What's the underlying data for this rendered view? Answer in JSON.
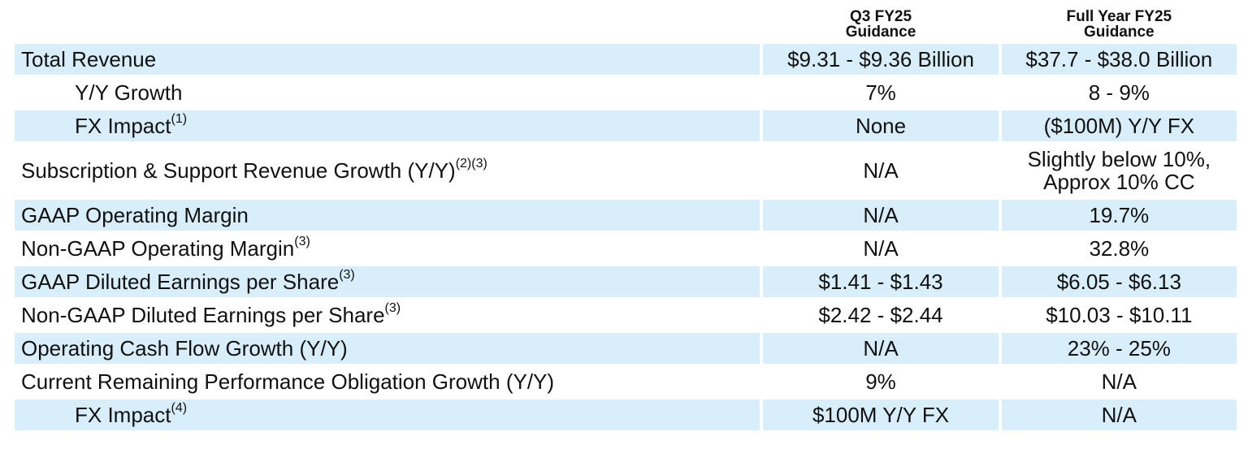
{
  "table": {
    "header": [
      "Q3 FY25\nGuidance",
      "Full Year FY25\nGuidance"
    ],
    "rows": [
      {
        "label": "Total Revenue",
        "values": [
          "$9.31 - $9.36 Billion",
          "$37.7 - $38.0 Billion"
        ]
      },
      {
        "label": "Y/Y Growth",
        "indent": true,
        "values": [
          "7%",
          "8 - 9%"
        ]
      },
      {
        "label": "FX Impact",
        "sup": "(1)",
        "indent": true,
        "values": [
          "None",
          "($100M) Y/Y FX"
        ]
      },
      {
        "label": "Subscription & Support Revenue Growth (Y/Y)",
        "sup": "(2)(3)",
        "values": [
          "N/A",
          "Slightly below 10%,\nApprox 10% CC"
        ]
      },
      {
        "label": "GAAP Operating Margin",
        "values": [
          "N/A",
          "19.7%"
        ]
      },
      {
        "label": "Non-GAAP Operating Margin",
        "sup": "(3)",
        "values": [
          "N/A",
          "32.8%"
        ]
      },
      {
        "label": "GAAP Diluted Earnings per Share",
        "sup": "(3)",
        "values": [
          "$1.41 - $1.43",
          "$6.05 - $6.13"
        ]
      },
      {
        "label": "Non-GAAP Diluted Earnings per Share",
        "sup": "(3)",
        "values": [
          "$2.42 - $2.44",
          "$10.03 - $10.11"
        ]
      },
      {
        "label": "Operating Cash Flow Growth (Y/Y)",
        "values": [
          "N/A",
          "23% - 25%"
        ]
      },
      {
        "label": "Current Remaining Performance Obligation Growth (Y/Y)",
        "values": [
          "9%",
          "N/A"
        ]
      },
      {
        "label": "FX Impact",
        "sup": "(4)",
        "indent": true,
        "values": [
          "$100M Y/Y FX",
          "N/A"
        ]
      }
    ]
  }
}
